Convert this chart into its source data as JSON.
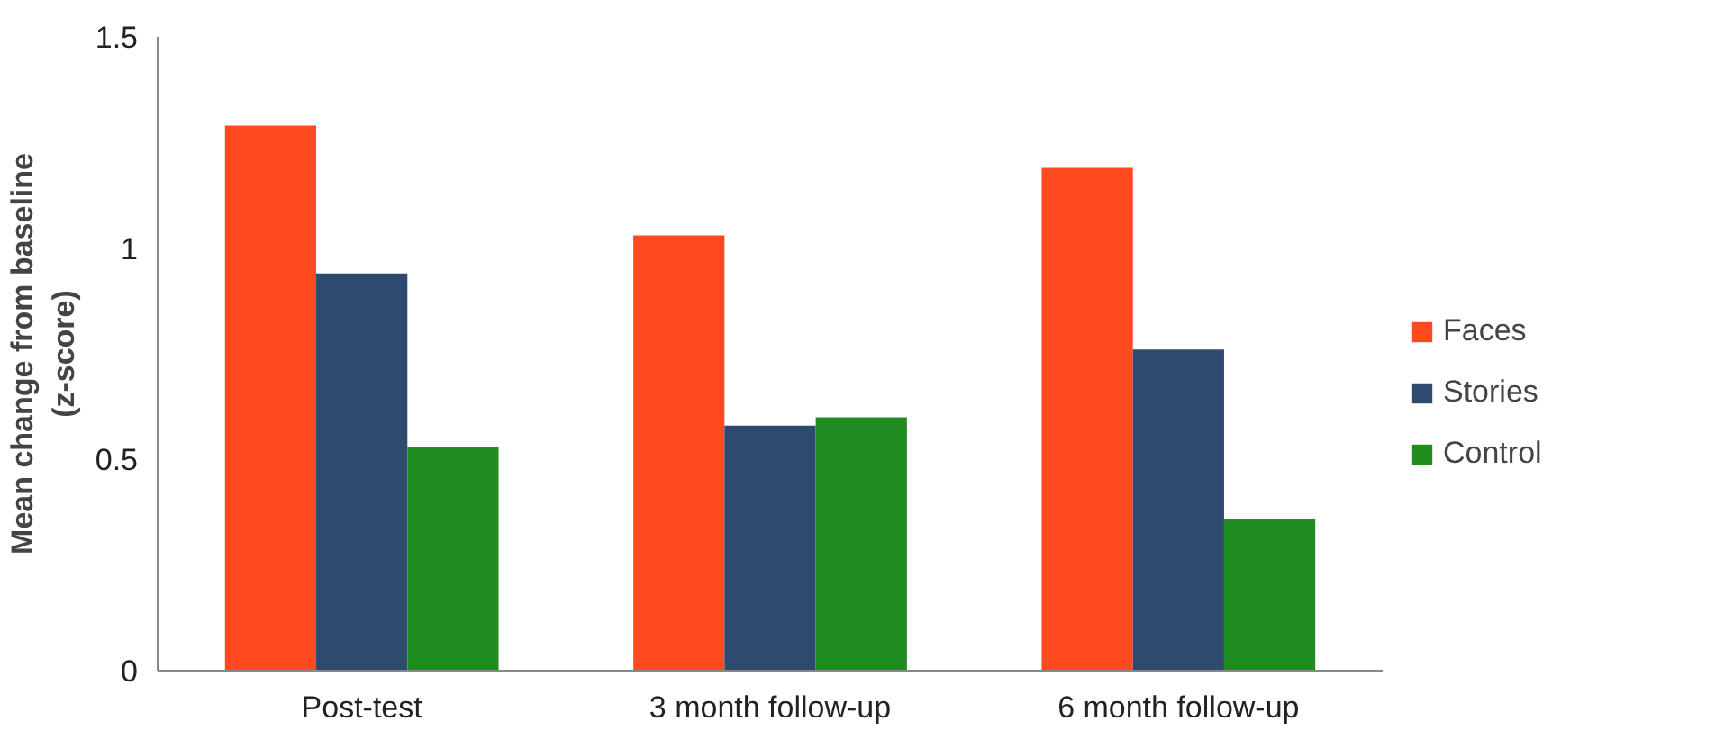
{
  "chart_data": {
    "type": "bar",
    "ylabel": "Mean change from baseline\n(z-score)",
    "categories": [
      "Post-test",
      "3 month follow-up",
      "6 month follow-up"
    ],
    "series": [
      {
        "name": "Faces",
        "color": "#ff4a1f",
        "values": [
          1.29,
          1.03,
          1.19
        ]
      },
      {
        "name": "Stories",
        "color": "#2e4a6e",
        "values": [
          0.94,
          0.58,
          0.76
        ]
      },
      {
        "name": "Control",
        "color": "#1e8c1e",
        "values": [
          0.53,
          0.6,
          0.36
        ]
      }
    ],
    "ylim": [
      0,
      1.5
    ],
    "yticks": [
      0,
      0.5,
      1,
      1.5
    ],
    "grid": false,
    "legend": "right"
  }
}
